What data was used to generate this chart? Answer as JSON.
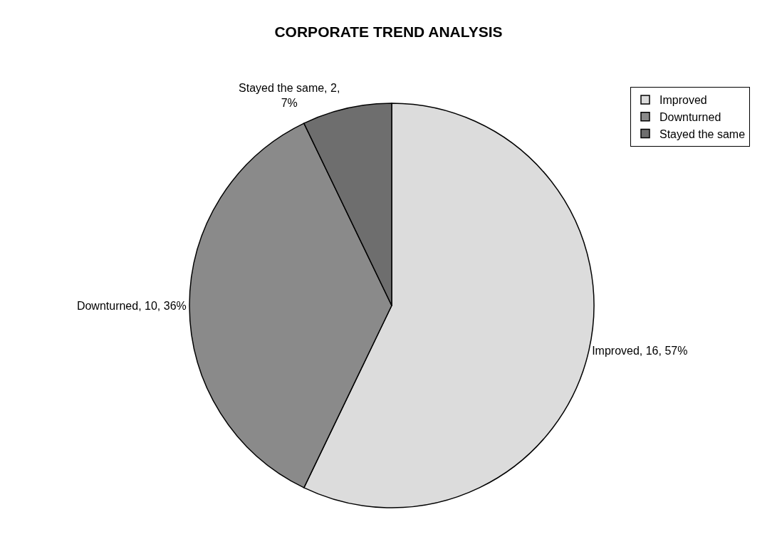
{
  "chart_data": {
    "type": "pie",
    "title": "CORPORATE TREND ANALYSIS",
    "categories": [
      "Improved",
      "Downturned",
      "Stayed the same"
    ],
    "values": [
      16,
      10,
      2
    ],
    "colors": [
      "#dcdcdc",
      "#8a8a8a",
      "#6e6e6e"
    ],
    "value_labels": [
      "Improved, 16, 57%",
      "Downturned, 10, 36%",
      "Stayed the same, 2,\n7%"
    ],
    "legend": "top right"
  }
}
